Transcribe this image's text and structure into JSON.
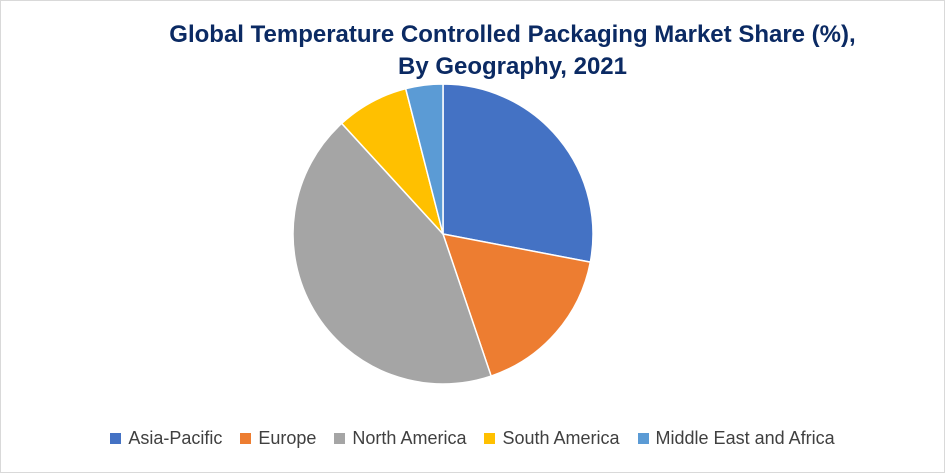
{
  "chart_data": {
    "type": "pie",
    "title_line1": "Global Temperature Controlled Packaging Market Share (%),",
    "title_line2": "By Geography, 2021",
    "legend_position": "bottom",
    "slices": [
      {
        "label": "Asia-Pacific",
        "value": 28.0,
        "color": "#4472C4"
      },
      {
        "label": "Europe",
        "value": 16.8,
        "color": "#ED7D31"
      },
      {
        "label": "North America",
        "value": 43.4,
        "color": "#A5A5A5"
      },
      {
        "label": "South America",
        "value": 7.8,
        "color": "#FFC000"
      },
      {
        "label": "Middle East and Africa",
        "value": 4.0,
        "color": "#5B9BD5"
      }
    ]
  }
}
